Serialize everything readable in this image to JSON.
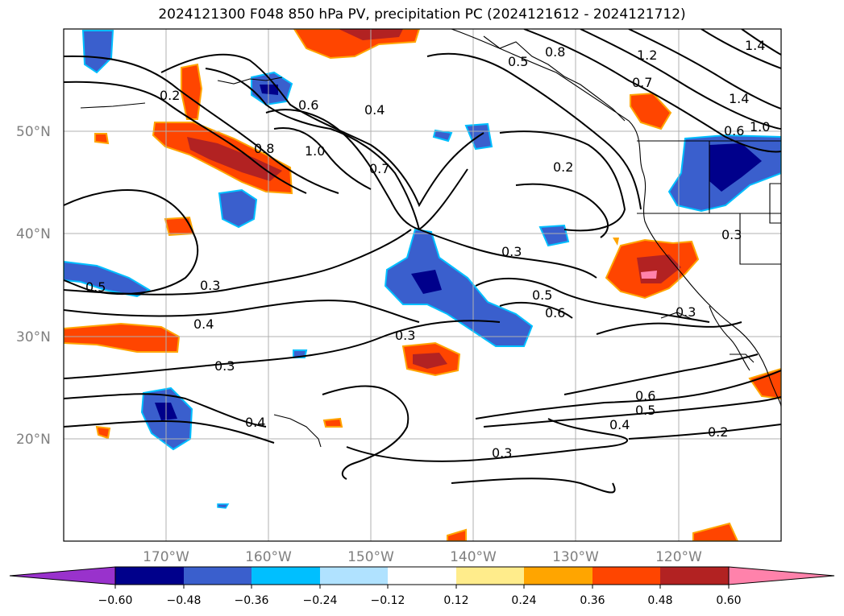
{
  "title": "2024121300 F048 850 hPa PV, precipitation PC (2024121612 - 2024121712)",
  "map": {
    "projection": "latlon",
    "lon_range_deg": [
      -180,
      -110
    ],
    "lat_range_deg": [
      10,
      60
    ],
    "lat_ticks": [
      "50°N",
      "40°N",
      "30°N",
      "20°N"
    ],
    "lon_ticks": [
      "170°W",
      "160°W",
      "150°W",
      "140°W",
      "130°W",
      "120°W"
    ],
    "contour_labels": [
      "0.2",
      "0.6",
      "0.8",
      "1.0",
      "0.7",
      "0.4",
      "0.5",
      "0.8",
      "1.2",
      "1.4",
      "0.7",
      "1.4",
      "1.0",
      "0.6",
      "0.2",
      "0.3",
      "0.5",
      "0.3",
      "0.4",
      "0.3",
      "0.5",
      "0.6",
      "0.3",
      "0.3",
      "0.3",
      "0.6",
      "0.5",
      "0.4",
      "0.2",
      "0.4",
      "0.3"
    ]
  },
  "colorbar": {
    "ticks": [
      "−0.60",
      "−0.48",
      "−0.36",
      "−0.24",
      "−0.12",
      "0.12",
      "0.24",
      "0.36",
      "0.48",
      "0.60"
    ],
    "colors": [
      "#9932cc",
      "#00008b",
      "#3a5fcd",
      "#00bfff",
      "#b0e2ff",
      "#ffffff",
      "#ffec8b",
      "#ffa500",
      "#ff4500",
      "#b22222",
      "#ff82ab"
    ]
  },
  "chart_data": {
    "type": "heatmap",
    "title": "2024121300 F048 850 hPa PV, precipitation PC (2024121612 - 2024121712)",
    "xlabel": "",
    "ylabel": "",
    "xlim": [
      -180,
      -110
    ],
    "ylim": [
      10,
      60
    ],
    "colorbar_levels": [
      -0.6,
      -0.48,
      -0.36,
      -0.24,
      -0.12,
      0.12,
      0.24,
      0.36,
      0.48,
      0.6
    ],
    "contour_levels": [
      0.2,
      0.3,
      0.4,
      0.5,
      0.6,
      0.7,
      0.8,
      1.0,
      1.2,
      1.4
    ],
    "grid": true
  }
}
